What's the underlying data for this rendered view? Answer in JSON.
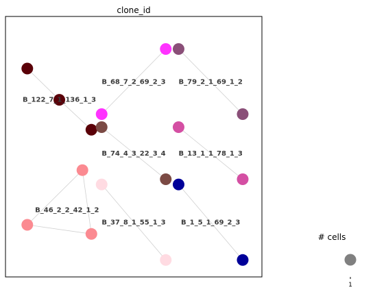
{
  "chart_data": {
    "type": "scatter",
    "title": "clone_id",
    "grid": false,
    "edge_color": "#d0d0d0",
    "clones": [
      {
        "label": "B_68_7_2_69_2_3",
        "nodes": [
          [
            0.625,
            0.875
          ],
          [
            0.375,
            0.625
          ]
        ],
        "colors": [
          "#ff33ff",
          "#ff33ff"
        ],
        "edges": [
          [
            0,
            1
          ]
        ]
      },
      {
        "label": "B_79_2_1_69_1_2",
        "nodes": [
          [
            0.675,
            0.875
          ],
          [
            0.925,
            0.625
          ]
        ],
        "colors": [
          "#8a4f78",
          "#8a4f78"
        ],
        "edges": [
          [
            0,
            1
          ]
        ]
      },
      {
        "label": "B_122_7_1_136_1_3",
        "nodes": [
          [
            0.085,
            0.8
          ],
          [
            0.21,
            0.68
          ],
          [
            0.335,
            0.565
          ]
        ],
        "colors": [
          "#5a0008",
          "#5a0008",
          "#5a0008"
        ],
        "edges": [
          [
            0,
            1
          ],
          [
            1,
            2
          ]
        ]
      },
      {
        "label": "B_74_4_3_22_3_4",
        "nodes": [
          [
            0.375,
            0.575
          ],
          [
            0.625,
            0.375
          ]
        ],
        "colors": [
          "#7b4a44",
          "#7b4a44"
        ],
        "edges": [
          [
            0,
            1
          ]
        ]
      },
      {
        "label": "B_13_1_1_78_1_3",
        "nodes": [
          [
            0.675,
            0.575
          ],
          [
            0.925,
            0.375
          ]
        ],
        "colors": [
          "#d44fa3",
          "#d44fa3"
        ],
        "edges": [
          [
            0,
            1
          ]
        ]
      },
      {
        "label": "B_46_2_2_42_1_2",
        "nodes": [
          [
            0.3,
            0.41
          ],
          [
            0.085,
            0.2
          ],
          [
            0.335,
            0.165
          ]
        ],
        "colors": [
          "#fb8a91",
          "#fb8a91",
          "#fb8a91"
        ],
        "edges": [
          [
            0,
            1
          ],
          [
            0,
            2
          ],
          [
            1,
            2
          ]
        ]
      },
      {
        "label": "B_37_8_1_55_1_3",
        "nodes": [
          [
            0.375,
            0.355
          ],
          [
            0.625,
            0.065
          ]
        ],
        "colors": [
          "#ffdbe2",
          "#ffdbe2"
        ],
        "edges": [
          [
            0,
            1
          ]
        ]
      },
      {
        "label": "B_1_5_1_69_2_3",
        "nodes": [
          [
            0.675,
            0.355
          ],
          [
            0.925,
            0.065
          ]
        ],
        "colors": [
          "#000099",
          "#000099"
        ],
        "edges": [
          [
            0,
            1
          ]
        ]
      }
    ],
    "xlim": [
      0,
      1
    ],
    "ylim": [
      0,
      1
    ]
  },
  "size_legend": {
    "title": "# cells",
    "tick_label": "1",
    "marker_color": "#808080"
  }
}
